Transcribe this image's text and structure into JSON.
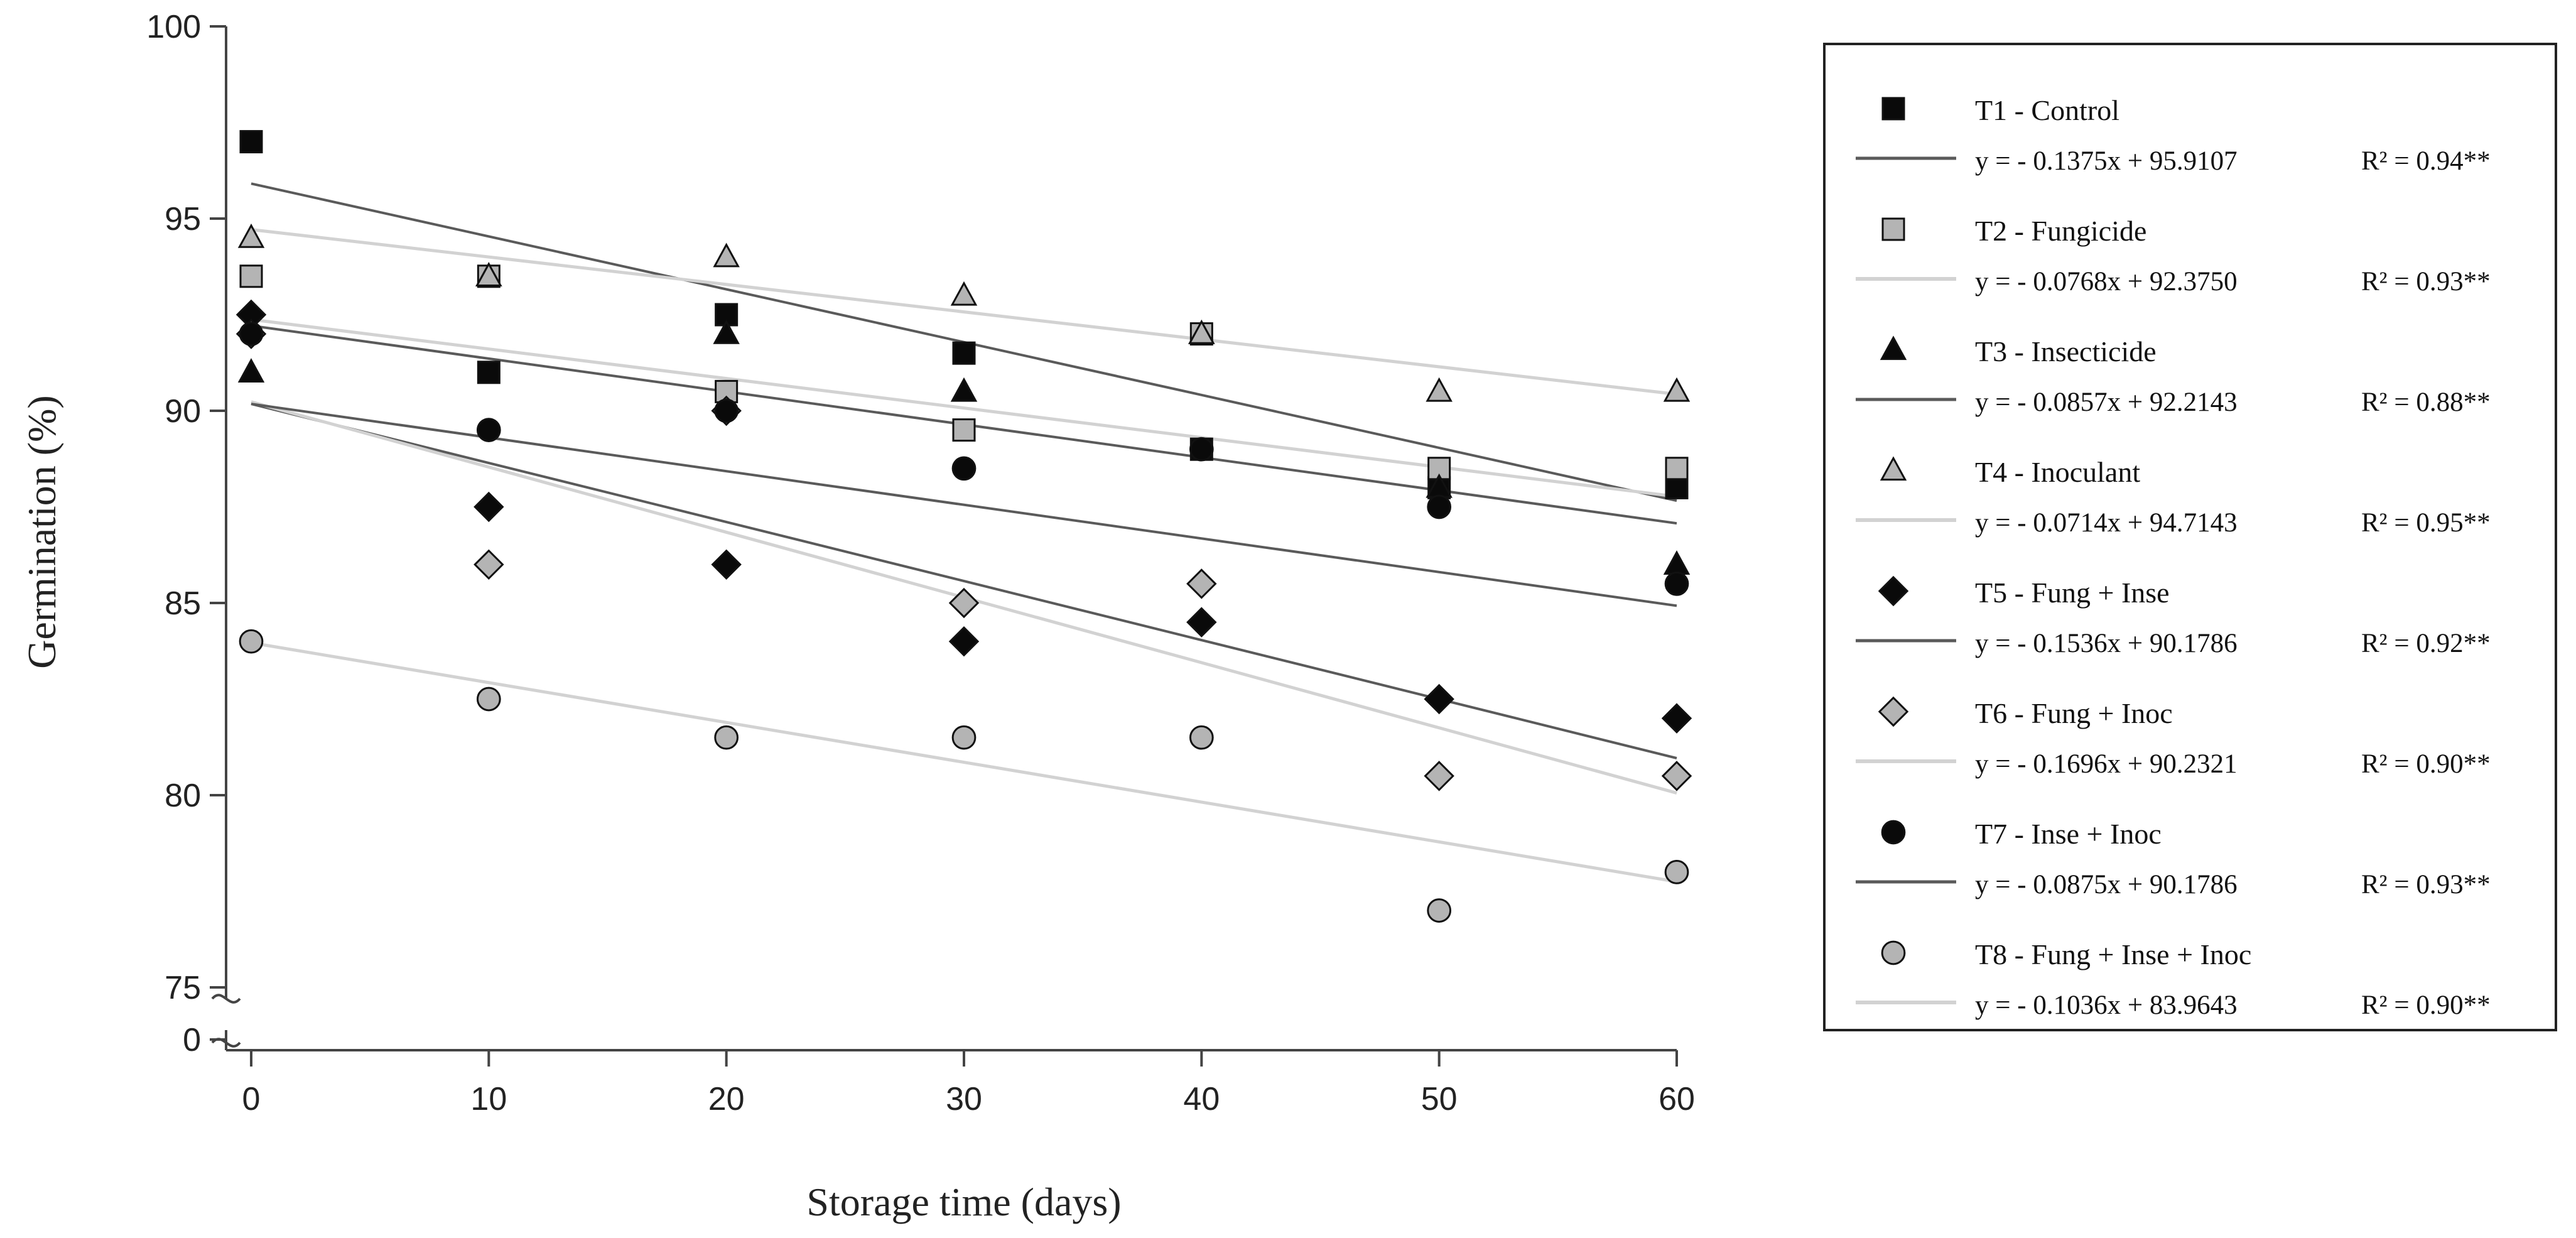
{
  "chart_data": {
    "type": "scatter",
    "xlabel": "Storage time (days)",
    "ylabel": "Germination (%)",
    "x": [
      0,
      10,
      20,
      30,
      40,
      50,
      60
    ],
    "xlim": [
      0,
      60
    ],
    "ylim": [
      75,
      100
    ],
    "y_ticks": [
      75,
      80,
      85,
      90,
      95,
      100
    ],
    "y_break_label": "0",
    "grid": false,
    "legend_position": "right",
    "colors": {
      "black": "#0a0a0a",
      "gray": "#b4b4b4",
      "dark_line": "#5a5a5a",
      "light_line": "#d2d2d2"
    },
    "series": [
      {
        "name": "T1 - Control",
        "marker": "square",
        "fill": "black",
        "values": [
          97,
          91,
          92.5,
          91.5,
          89,
          88,
          88
        ],
        "equation": "y = - 0.1375x + 95.9107",
        "r2": "R² = 0.94**",
        "slope": -0.1375,
        "intercept": 95.9107,
        "line": "dark_line"
      },
      {
        "name": "T2 - Fungicide",
        "marker": "square",
        "fill": "gray",
        "values": [
          93.5,
          93.5,
          90.5,
          89.5,
          92,
          88.5,
          88.5
        ],
        "equation": "y = - 0.0768x + 92.3750",
        "r2": "R² = 0.93**",
        "slope": -0.0768,
        "intercept": 92.375,
        "line": "light_line"
      },
      {
        "name": "T3 - Insecticide",
        "marker": "triangle",
        "fill": "black",
        "values": [
          91,
          93.5,
          92,
          90.5,
          92,
          88,
          86
        ],
        "equation": "y = - 0.0857x + 92.2143",
        "r2": "R² = 0.88**",
        "slope": -0.0857,
        "intercept": 92.2143,
        "line": "dark_line"
      },
      {
        "name": "T4 - Inoculant",
        "marker": "triangle",
        "fill": "gray",
        "values": [
          94.5,
          93.5,
          94,
          93,
          92,
          90.5,
          90.5
        ],
        "equation": "y = - 0.0714x + 94.7143",
        "r2": "R² = 0.95**",
        "slope": -0.0714,
        "intercept": 94.7143,
        "line": "light_line"
      },
      {
        "name": "T5 - Fung + Inse",
        "marker": "diamond",
        "fill": "black",
        "values": [
          92.5,
          87.5,
          86,
          84,
          84.5,
          82.5,
          82
        ],
        "equation": "y = - 0.1536x + 90.1786",
        "r2": "R² = 0.92**",
        "slope": -0.1536,
        "intercept": 90.1786,
        "line": "dark_line"
      },
      {
        "name": "T6 - Fung + Inoc",
        "marker": "diamond",
        "fill": "gray",
        "values": [
          92,
          86,
          90,
          85,
          85.5,
          80.5,
          80.5
        ],
        "equation": "y = - 0.1696x + 90.2321",
        "r2": "R² = 0.90**",
        "slope": -0.1696,
        "intercept": 90.2321,
        "line": "light_line"
      },
      {
        "name": "T7 - Inse + Inoc",
        "marker": "circle",
        "fill": "black",
        "values": [
          92,
          89.5,
          90,
          88.5,
          89,
          87.5,
          85.5
        ],
        "equation": "y = - 0.0875x + 90.1786",
        "r2": "R² = 0.93**",
        "slope": -0.0875,
        "intercept": 90.1786,
        "line": "dark_line"
      },
      {
        "name": "T8 - Fung + Inse + Inoc",
        "marker": "circle",
        "fill": "gray",
        "values": [
          84,
          82.5,
          81.5,
          81.5,
          81.5,
          77,
          78
        ],
        "equation": "y = - 0.1036x + 83.9643",
        "r2": "R² = 0.90**",
        "slope": -0.1036,
        "intercept": 83.9643,
        "line": "light_line"
      }
    ]
  }
}
